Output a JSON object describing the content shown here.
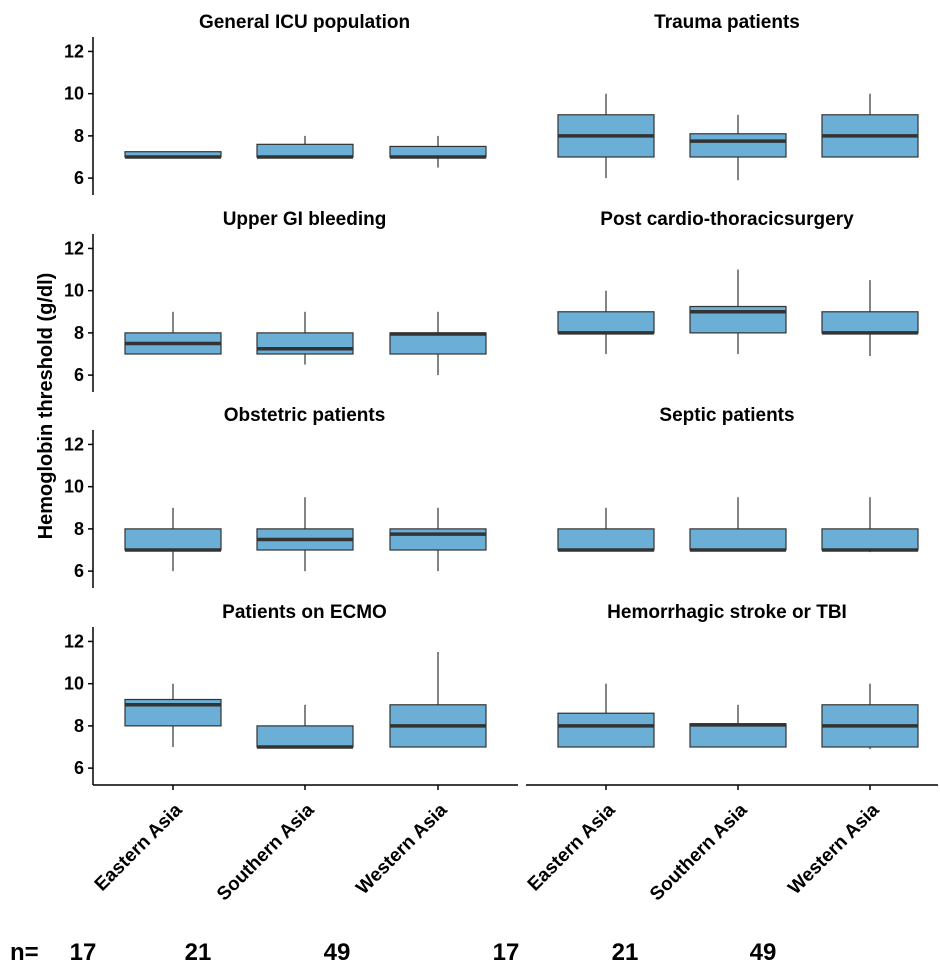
{
  "chart_data": {
    "type": "box",
    "ylabel": "Hemoglobin threshold (g/dl)",
    "ylim": [
      5.2,
      12.4
    ],
    "yticks": [
      6,
      8,
      10,
      12
    ],
    "categories": [
      "Eastern Asia",
      "Southern Asia",
      "Western Asia"
    ],
    "box_color": "#6baed6",
    "n_prefix": "n=",
    "n_values": [
      "17",
      "21",
      "49",
      "17",
      "21",
      "49"
    ],
    "panels": [
      {
        "title": "General ICU population",
        "column": 0,
        "row": 0,
        "boxes": [
          {
            "category": "Eastern Asia",
            "low": 7,
            "q1": 7,
            "median": 7,
            "q3": 7.25,
            "high": 7.25
          },
          {
            "category": "Southern Asia",
            "low": 7,
            "q1": 7,
            "median": 7,
            "q3": 7.6,
            "high": 8
          },
          {
            "category": "Western Asia",
            "low": 6.5,
            "q1": 7,
            "median": 7,
            "q3": 7.5,
            "high": 8
          }
        ]
      },
      {
        "title": "Trauma patients",
        "column": 1,
        "row": 0,
        "boxes": [
          {
            "category": "Eastern Asia",
            "low": 6,
            "q1": 7,
            "median": 8,
            "q3": 9,
            "high": 10
          },
          {
            "category": "Southern Asia",
            "low": 5.9,
            "q1": 7,
            "median": 7.75,
            "q3": 8.1,
            "high": 9
          },
          {
            "category": "Western Asia",
            "low": 7,
            "q1": 7,
            "median": 8,
            "q3": 9,
            "high": 10
          }
        ]
      },
      {
        "title": "Upper GI bleeding",
        "column": 0,
        "row": 1,
        "boxes": [
          {
            "category": "Eastern Asia",
            "low": 7,
            "q1": 7,
            "median": 7.5,
            "q3": 8,
            "high": 9
          },
          {
            "category": "Southern Asia",
            "low": 6.5,
            "q1": 7,
            "median": 7.25,
            "q3": 8,
            "high": 9
          },
          {
            "category": "Western Asia",
            "low": 6,
            "q1": 7,
            "median": 7.95,
            "q3": 8,
            "high": 9
          }
        ]
      },
      {
        "title": "Post cardio-thoracicsurgery",
        "column": 1,
        "row": 1,
        "boxes": [
          {
            "category": "Eastern Asia",
            "low": 7,
            "q1": 8,
            "median": 8,
            "q3": 9,
            "high": 10
          },
          {
            "category": "Southern Asia",
            "low": 7,
            "q1": 8,
            "median": 9,
            "q3": 9.25,
            "high": 11
          },
          {
            "category": "Western Asia",
            "low": 6.9,
            "q1": 8,
            "median": 8,
            "q3": 9,
            "high": 10.5
          }
        ]
      },
      {
        "title": "Obstetric patients",
        "column": 0,
        "row": 2,
        "boxes": [
          {
            "category": "Eastern Asia",
            "low": 6,
            "q1": 7,
            "median": 7,
            "q3": 8,
            "high": 9
          },
          {
            "category": "Southern Asia",
            "low": 6,
            "q1": 7,
            "median": 7.5,
            "q3": 8,
            "high": 9.5
          },
          {
            "category": "Western Asia",
            "low": 6,
            "q1": 7,
            "median": 7.75,
            "q3": 8,
            "high": 9
          }
        ]
      },
      {
        "title": "Septic patients",
        "column": 1,
        "row": 2,
        "boxes": [
          {
            "category": "Eastern Asia",
            "low": 7,
            "q1": 7,
            "median": 7,
            "q3": 8,
            "high": 9
          },
          {
            "category": "Southern Asia",
            "low": 7,
            "q1": 7,
            "median": 7,
            "q3": 8,
            "high": 9.5
          },
          {
            "category": "Western Asia",
            "low": 6.9,
            "q1": 7,
            "median": 7,
            "q3": 8,
            "high": 9.5
          }
        ]
      },
      {
        "title": "Patients on ECMO",
        "column": 0,
        "row": 3,
        "boxes": [
          {
            "category": "Eastern Asia",
            "low": 7,
            "q1": 8,
            "median": 9,
            "q3": 9.25,
            "high": 10
          },
          {
            "category": "Southern Asia",
            "low": 7,
            "q1": 7,
            "median": 7,
            "q3": 8,
            "high": 9
          },
          {
            "category": "Western Asia",
            "low": 7,
            "q1": 7,
            "median": 8,
            "q3": 9,
            "high": 11.5
          }
        ]
      },
      {
        "title": "Hemorrhagic stroke or TBI",
        "column": 1,
        "row": 3,
        "boxes": [
          {
            "category": "Eastern Asia",
            "low": 7,
            "q1": 7,
            "median": 8,
            "q3": 8.6,
            "high": 10
          },
          {
            "category": "Southern Asia",
            "low": 7,
            "q1": 7,
            "median": 8.05,
            "q3": 8.1,
            "high": 9
          },
          {
            "category": "Western Asia",
            "low": 6.9,
            "q1": 7,
            "median": 8,
            "q3": 9,
            "high": 10
          }
        ]
      }
    ]
  }
}
